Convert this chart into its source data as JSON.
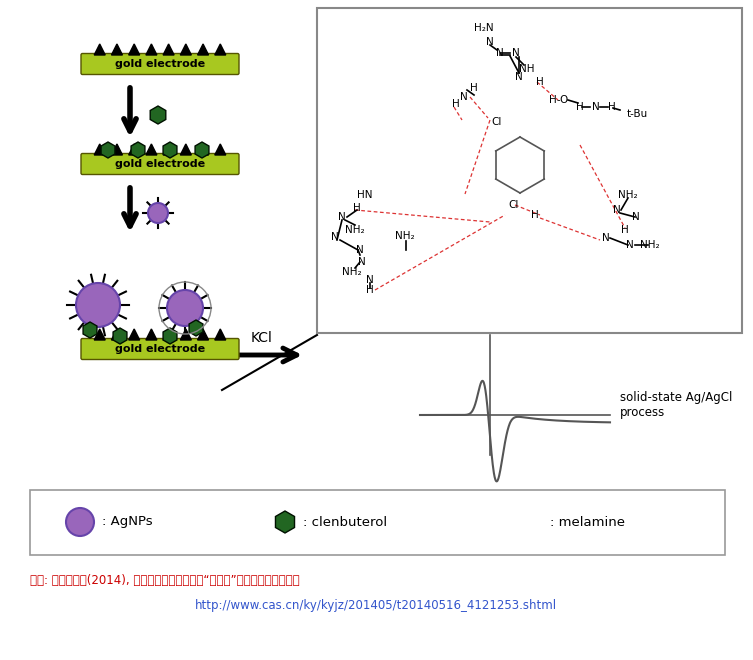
{
  "source_text": "자료: 중국과학원(2014), 苏州医工所研制出检测“瘦肉精”的新型电化学传感器",
  "url_text": "http://www.cas.cn/ky/kyjz/201405/t20140516_4121253.shtml",
  "legend_agNPs": "AgNPs",
  "legend_clenbuterol": "clenbuterol",
  "legend_melamine": "melamine",
  "electrode_color": "#a8c820",
  "electrode_text": "gold electrode",
  "agNP_color": "#9966bb",
  "agNP_edge": "#6644aa",
  "clenbuterol_color": "#226622",
  "source_color": "#cc0000",
  "url_color": "#3355cc",
  "KCl_text": "KCl",
  "process_text": "solid-state Ag/AgCl\nprocess"
}
